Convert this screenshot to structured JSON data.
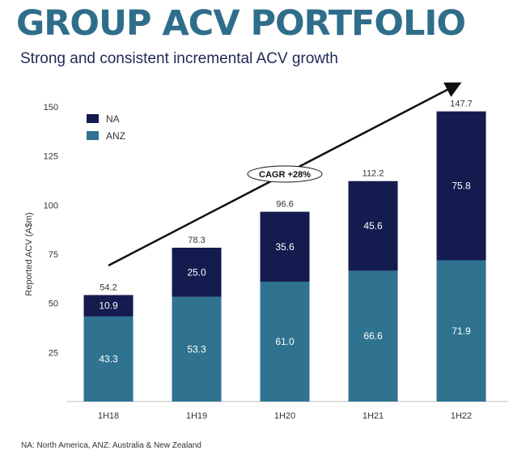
{
  "title": "GROUP ACV PORTFOLIO",
  "subtitle": "Strong and consistent incremental ACV growth",
  "footnote": "NA: North America, ANZ: Australia & New Zealand",
  "chart_data": {
    "type": "bar",
    "stacked": true,
    "ylabel": "Reported ACV (A$m)",
    "xlabel": "",
    "ylim": [
      0,
      150
    ],
    "yticks": [
      25,
      50,
      75,
      100,
      125,
      150
    ],
    "categories": [
      "1H18",
      "1H19",
      "1H20",
      "1H21",
      "1H22"
    ],
    "series": [
      {
        "name": "ANZ",
        "color": "#2f7390",
        "values": [
          43.3,
          53.3,
          61.0,
          66.6,
          71.9
        ],
        "labels": [
          "43.3",
          "53.3",
          "61.0",
          "66.6",
          "71.9"
        ]
      },
      {
        "name": "NA",
        "color": "#141b4f",
        "values": [
          10.9,
          25.0,
          35.6,
          45.6,
          75.8
        ],
        "labels": [
          "10.9",
          "25.0",
          "35.6",
          "45.6",
          "75.8"
        ]
      }
    ],
    "totals": [
      54.2,
      78.3,
      96.6,
      112.2,
      147.7
    ],
    "annotation": "CAGR +28%",
    "legend_position": "top-left",
    "grid": false
  }
}
